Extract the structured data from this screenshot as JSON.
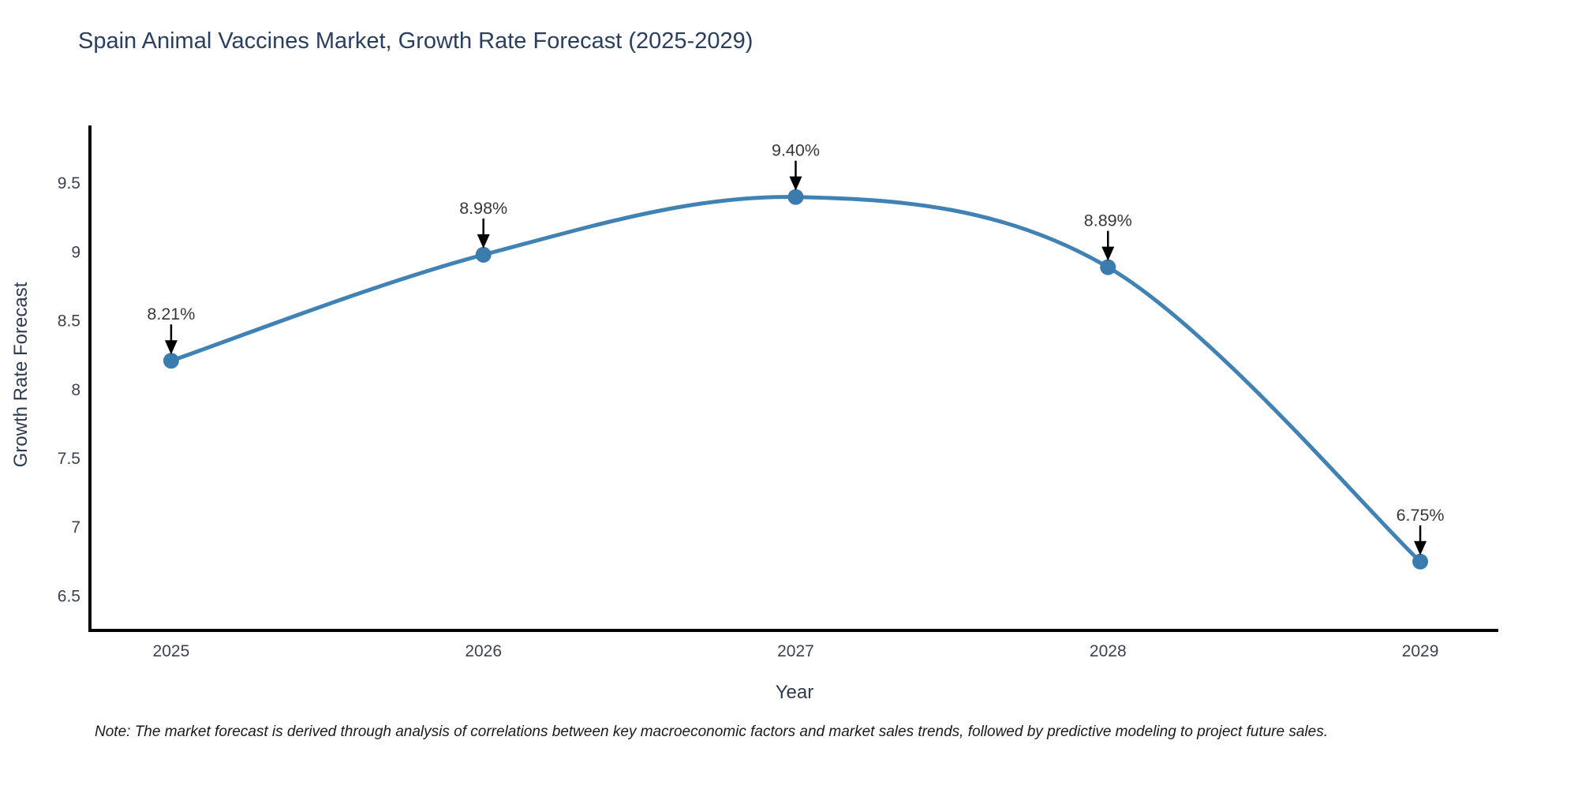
{
  "title": "Spain Animal Vaccines Market, Growth Rate Forecast (2025-2029)",
  "footnote": "Note: The market forecast is derived through analysis of correlations between key macroeconomic factors and market sales trends, followed by predictive modeling to project future sales.",
  "chart_data": {
    "type": "line",
    "title": "Spain Animal Vaccines Market, Growth Rate Forecast (2025-2029)",
    "xlabel": "Year",
    "ylabel": "Growth Rate Forecast",
    "x": [
      2025,
      2026,
      2027,
      2028,
      2029
    ],
    "values": [
      8.21,
      8.98,
      9.4,
      8.89,
      6.75
    ],
    "point_labels": [
      "8.21%",
      "8.98%",
      "9.40%",
      "8.89%",
      "6.75%"
    ],
    "x_tick_labels": [
      "2025",
      "2026",
      "2027",
      "2028",
      "2029"
    ],
    "y_tick_labels": [
      "6.5",
      "7",
      "7.5",
      "8",
      "8.5",
      "9",
      "9.5"
    ],
    "xlim": [
      2024.74,
      2029.25
    ],
    "ylim": [
      6.25,
      9.92
    ],
    "line_shape": "spline",
    "grid": false,
    "legend": "none",
    "colors": {
      "line": "#4182b5",
      "marker": "#3c7bae",
      "axis": "#000000",
      "arrow": "#000000",
      "title_text": "#2a3f5f",
      "axis_title_text": "#2f3a4f",
      "tick_text": "#3b4252",
      "annotation_text": "#383838",
      "note_text": "#1a1a1a",
      "background": "#ffffff"
    }
  }
}
